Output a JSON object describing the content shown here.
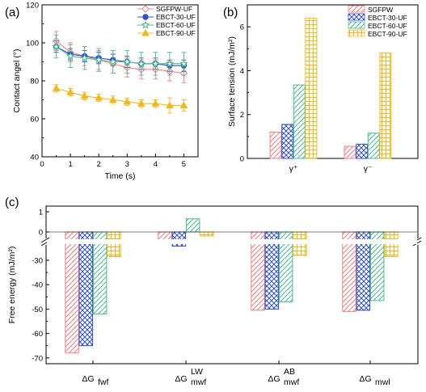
{
  "colors": {
    "SGFPW": "#f08080",
    "EBCT-30": "#3050c8",
    "EBCT-60": "#50b890",
    "EBCT-90": "#f0b820"
  },
  "chart_data": [
    {
      "panel": "(a)",
      "type": "line",
      "xlabel": "Time (s)",
      "ylabel": "Contact angel (°)",
      "xlim": [
        0,
        5.5
      ],
      "ylim": [
        40,
        120
      ],
      "xticks": [
        0,
        1,
        2,
        3,
        4,
        5
      ],
      "yticks": [
        40,
        60,
        80,
        100,
        120
      ],
      "legend": "top-right",
      "x": [
        0.5,
        1.0,
        1.5,
        2.0,
        2.5,
        3.0,
        3.5,
        4.0,
        4.5,
        5.0
      ],
      "series": [
        {
          "name": "SGFPW-UF",
          "marker": "diamond",
          "values": [
            101,
            95,
            93,
            91,
            89,
            87,
            86,
            86,
            85,
            84
          ],
          "error": [
            5,
            5,
            5,
            5,
            5,
            5,
            5,
            5,
            5,
            5
          ]
        },
        {
          "name": "EBCT-30-UF",
          "marker": "circle",
          "values": [
            98,
            94,
            93,
            92,
            91,
            90,
            89,
            89,
            88,
            88
          ],
          "error": [
            3,
            3,
            3,
            3,
            3,
            3,
            3,
            3,
            3,
            3
          ]
        },
        {
          "name": "EBCT-60-UF",
          "marker": "star",
          "values": [
            98,
            93,
            92,
            91,
            90,
            90,
            89,
            89,
            89,
            89
          ],
          "error": [
            6,
            6,
            6,
            6,
            6,
            6,
            6,
            6,
            6,
            6
          ]
        },
        {
          "name": "EBCT-90-UF",
          "marker": "triangle",
          "values": [
            76,
            74,
            72,
            71,
            70,
            69,
            68,
            68,
            67,
            67
          ],
          "error": [
            2,
            2,
            2,
            2,
            2,
            2,
            2,
            2,
            4,
            3
          ]
        }
      ]
    },
    {
      "panel": "(b)",
      "type": "bar",
      "ylabel": "Surface tension (mJ/m²)",
      "ylim": [
        0,
        7
      ],
      "yticks": [
        0,
        2,
        4,
        6
      ],
      "legend": "top-right",
      "categories": [
        "γ⁺",
        "γ⁻"
      ],
      "series": [
        {
          "name": "SGFPW",
          "values": [
            1.2,
            0.55
          ]
        },
        {
          "name": "EBCT-30-UF",
          "values": [
            1.55,
            0.65
          ]
        },
        {
          "name": "EBCT-60-UF",
          "values": [
            3.35,
            1.15
          ]
        },
        {
          "name": "EBCT-90-UF",
          "values": [
            6.4,
            4.8
          ]
        }
      ]
    },
    {
      "panel": "(c)",
      "type": "bar",
      "ylabel": "Free energy (mJ/m²)",
      "yaxis_break": [
        -18,
        -3
      ],
      "yticks_upper": [
        0,
        1
      ],
      "yticks_lower": [
        -70,
        -60,
        -50,
        -40,
        -30
      ],
      "categories": [
        {
          "base": "ΔG",
          "sub": "fwf",
          "sup": ""
        },
        {
          "base": "ΔG",
          "sub": "mwf",
          "sup": "LW"
        },
        {
          "base": "ΔG",
          "sub": "mwf",
          "sup": "AB"
        },
        {
          "base": "ΔG",
          "sub": "mwl",
          "sup": ""
        }
      ],
      "series": [
        {
          "name": "SGFPW",
          "values": [
            -68,
            -0.5,
            -50.5,
            -51
          ]
        },
        {
          "name": "EBCT-30-UF",
          "values": [
            -65,
            -0.7,
            -50,
            -50.5
          ]
        },
        {
          "name": "EBCT-60-UF",
          "values": [
            -52,
            0.65,
            -47,
            -46.5
          ]
        },
        {
          "name": "EBCT-90-UF",
          "values": [
            -28.5,
            -0.2,
            -28,
            -28.5
          ]
        }
      ]
    }
  ]
}
